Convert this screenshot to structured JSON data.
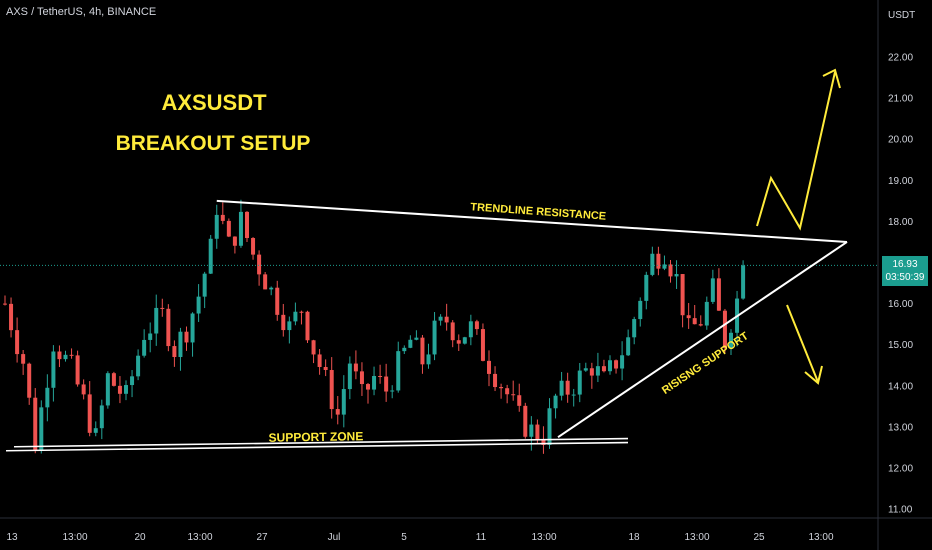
{
  "header": {
    "symbol_line": "AXS / TetherUS, 4h, BINANCE"
  },
  "axis": {
    "unit": "USDT"
  },
  "price_tag": {
    "price": "16.93",
    "countdown": "03:50:39",
    "color": "#1b9d8f"
  },
  "colors": {
    "up": "#26a69a",
    "down": "#ef5350",
    "annotation": "#ffeb3b",
    "trendline": "#ffffff"
  },
  "chart_data": {
    "type": "candlestick",
    "title": "AXSUSDT",
    "subtitle": "BREAKOUT SETUP",
    "ylim": [
      10.7,
      23.0
    ],
    "y_ticks": [
      11.0,
      12.0,
      13.0,
      14.0,
      15.0,
      16.0,
      17.0,
      18.0,
      19.0,
      20.0,
      21.0,
      22.0
    ],
    "x_tick_labels": [
      "13",
      "13:00",
      "20",
      "13:00",
      "27",
      "Jul",
      "5",
      "11",
      "13:00",
      "18",
      "13:00",
      "25",
      "13:00"
    ],
    "current_price": 16.93,
    "close_path": [
      [
        0,
        16.0
      ],
      [
        3,
        14.6
      ],
      [
        5,
        12.6
      ],
      [
        8,
        15.1
      ],
      [
        11,
        14.4
      ],
      [
        13,
        13.6
      ],
      [
        15,
        12.7
      ],
      [
        17,
        14.2
      ],
      [
        20,
        13.7
      ],
      [
        23,
        15.3
      ],
      [
        26,
        15.7
      ],
      [
        28,
        14.9
      ],
      [
        30,
        15.4
      ],
      [
        32,
        16.2
      ],
      [
        34,
        17.3
      ],
      [
        35,
        18.4
      ],
      [
        37,
        17.4
      ],
      [
        39,
        18.0
      ],
      [
        41,
        17.2
      ],
      [
        43,
        16.6
      ],
      [
        45,
        16.0
      ],
      [
        47,
        15.4
      ],
      [
        49,
        15.9
      ],
      [
        51,
        14.9
      ],
      [
        53,
        14.1
      ],
      [
        55,
        13.3
      ],
      [
        57,
        14.6
      ],
      [
        59,
        13.7
      ],
      [
        61,
        14.2
      ],
      [
        63,
        13.9
      ],
      [
        65,
        14.5
      ],
      [
        67,
        15.1
      ],
      [
        69,
        14.6
      ],
      [
        71,
        15.3
      ],
      [
        73,
        15.6
      ],
      [
        75,
        15.2
      ],
      [
        77,
        15.4
      ],
      [
        79,
        14.8
      ],
      [
        81,
        14.3
      ],
      [
        83,
        13.8
      ],
      [
        85,
        13.2
      ],
      [
        87,
        12.9
      ],
      [
        89,
        12.8
      ],
      [
        91,
        13.7
      ],
      [
        93,
        13.9
      ],
      [
        95,
        14.2
      ],
      [
        97,
        14.5
      ],
      [
        99,
        14.1
      ],
      [
        101,
        14.6
      ],
      [
        103,
        15.1
      ],
      [
        105,
        16.2
      ],
      [
        107,
        17.1
      ],
      [
        109,
        17.3
      ],
      [
        111,
        16.6
      ],
      [
        113,
        15.3
      ],
      [
        115,
        15.6
      ],
      [
        117,
        16.3
      ],
      [
        119,
        15.1
      ],
      [
        121,
        16.1
      ],
      [
        122,
        16.93
      ]
    ],
    "support_zone": {
      "label": "SUPPORT ZONE",
      "price_start": 12.42,
      "price_end": 12.62
    },
    "resistance": {
      "label": "TRENDLINE RESISTANCE",
      "from": [
        35,
        18.5
      ],
      "to": [
        136,
        17.5
      ]
    },
    "rising_support": {
      "label": "RISISNG SUPPORT",
      "from": [
        89,
        12.75
      ],
      "to": [
        136,
        17.5
      ]
    },
    "scenarios": [
      {
        "direction": "up",
        "path": [
          [
            124,
            18.8
          ],
          [
            128,
            17.9
          ],
          [
            135,
            21.8
          ]
        ]
      },
      {
        "direction": "down",
        "path": [
          [
            124,
            16.9
          ],
          [
            134,
            14.1
          ]
        ]
      }
    ]
  }
}
